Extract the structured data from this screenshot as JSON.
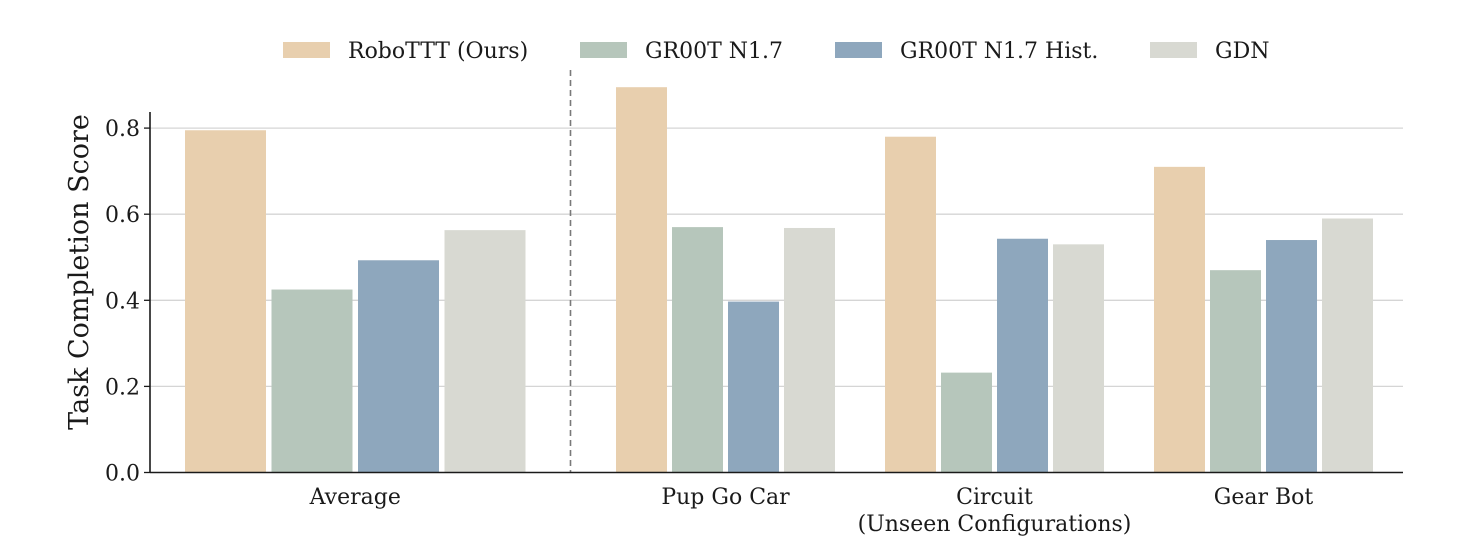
{
  "chart_data": {
    "type": "bar",
    "title": "",
    "xlabel": "",
    "ylabel": "Task Completion Score",
    "ylim": [
      0,
      0.9
    ],
    "yticks": [
      "0.0",
      "0.2",
      "0.4",
      "0.6",
      "0.8"
    ],
    "ytick_values": [
      0,
      0.2,
      0.4,
      0.6,
      0.8
    ],
    "grid": "horizontal",
    "legend_position": "top",
    "categories": [
      {
        "label": "Average",
        "sublabel": ""
      },
      {
        "label": "Pup Go Car",
        "sublabel": ""
      },
      {
        "label": "Circuit",
        "sublabel": "(Unseen Configurations)"
      },
      {
        "label": "Gear Bot",
        "sublabel": ""
      }
    ],
    "separator_after_category": "Average",
    "series": [
      {
        "name": "RoboTTT (Ours)",
        "color": "#e8cfae",
        "values": [
          0.795,
          0.895,
          0.78,
          0.71
        ]
      },
      {
        "name": "GR00T N1.7",
        "color": "#b6c6bb",
        "values": [
          0.425,
          0.57,
          0.232,
          0.47
        ]
      },
      {
        "name": "GR00T N1.7 Hist.",
        "color": "#8ea7bd",
        "values": [
          0.493,
          0.397,
          0.543,
          0.54
        ]
      },
      {
        "name": "GDN",
        "color": "#d8d9d2",
        "values": [
          0.563,
          0.568,
          0.53,
          0.59
        ]
      }
    ]
  }
}
